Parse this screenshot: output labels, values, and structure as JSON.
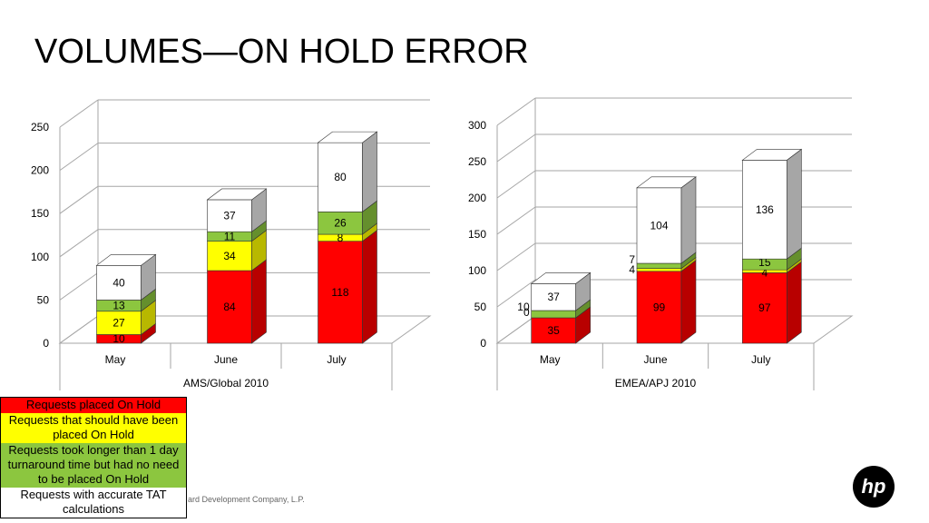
{
  "page": {
    "title": "VOLUMES—ON HOLD ERROR",
    "footer": "ard Development Company, L.P.",
    "logo_text": "hp"
  },
  "legend": {
    "items": [
      {
        "label": "Requests placed On Hold",
        "color": "#ff0000"
      },
      {
        "label": "Requests that should have been placed On Hold",
        "color": "#ffff00"
      },
      {
        "label": "Requests took longer than 1 day turnaround time but had no need to be placed On Hold",
        "color": "#8cc63f"
      },
      {
        "label": "Requests with accurate TAT calculations",
        "color": "#ffffff"
      }
    ]
  },
  "chart_data": [
    {
      "type": "bar",
      "stacked": true,
      "style": "3d",
      "xlabel": "AMS/Global 2010",
      "ylabel": "",
      "ylim": [
        0,
        250
      ],
      "yticks": [
        0,
        50,
        100,
        150,
        200,
        250
      ],
      "categories": [
        "May",
        "June",
        "July"
      ],
      "series": [
        {
          "color": "#ff0000",
          "values": [
            10,
            84,
            118
          ]
        },
        {
          "color": "#ffff00",
          "values": [
            27,
            34,
            8
          ]
        },
        {
          "color": "#8cc63f",
          "values": [
            13,
            11,
            26
          ]
        },
        {
          "color": "#ffffff",
          "values": [
            40,
            37,
            80
          ]
        }
      ]
    },
    {
      "type": "bar",
      "stacked": true,
      "style": "3d",
      "xlabel": "EMEA/APJ 2010",
      "ylabel": "",
      "ylim": [
        0,
        300
      ],
      "yticks": [
        0,
        50,
        100,
        150,
        200,
        250,
        300
      ],
      "categories": [
        "May",
        "June",
        "July"
      ],
      "series": [
        {
          "color": "#ff0000",
          "values": [
            35,
            99,
            97
          ]
        },
        {
          "color": "#ffff00",
          "values": [
            0,
            4,
            4
          ]
        },
        {
          "color": "#8cc63f",
          "values": [
            10,
            7,
            15
          ]
        },
        {
          "color": "#ffffff",
          "values": [
            37,
            104,
            136
          ]
        }
      ]
    }
  ]
}
